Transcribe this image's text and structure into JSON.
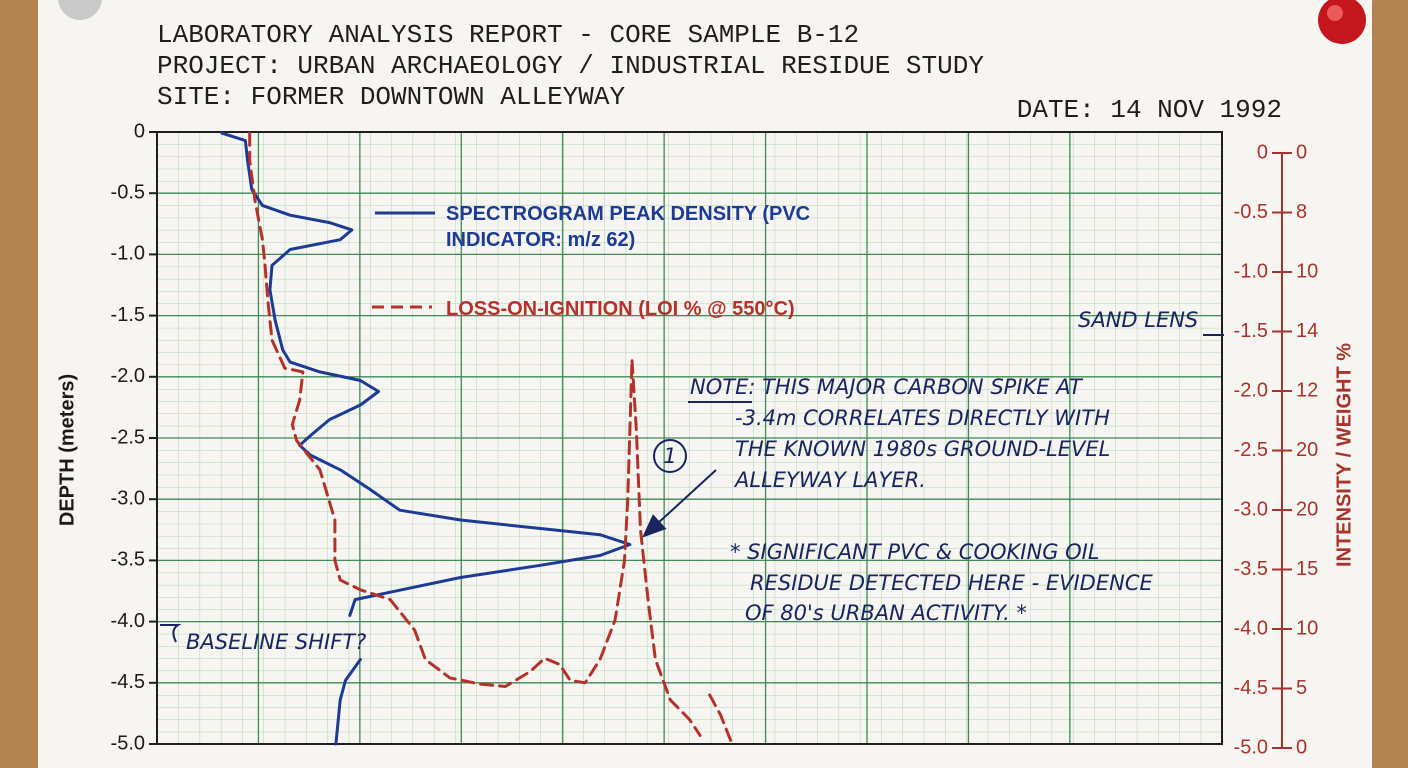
{
  "header": {
    "lines": [
      "LABORATORY ANALYSIS REPORT - CORE SAMPLE B-12",
      "PROJECT: URBAN ARCHAEOLOGY / INDUSTRIAL RESIDUE STUDY",
      "SITE: FORMER DOWNTOWN ALLEYWAY"
    ],
    "date": "DATE: 14 NOV 1992"
  },
  "chart_data": {
    "type": "line",
    "y_label": "DEPTH (meters)",
    "y2_label": "INTENSITY / WEIGHT %",
    "xlim": [
      0,
      100
    ],
    "ylim": [
      0,
      -5
    ],
    "yticks": [
      0,
      -0.5,
      {
        "value": -1,
        "label": "-1.0"
      },
      -1.5,
      {
        "value": -2,
        "label": "-2.0"
      },
      -2.5,
      {
        "value": -3,
        "label": "-3.0"
      },
      -3.5,
      {
        "value": -4,
        "label": "-4.0"
      },
      -4.5,
      {
        "value": -5,
        "label": "-5.0"
      }
    ],
    "y2lim": [
      0,
      -5
    ],
    "y2ticks": [
      0,
      -0.5,
      {
        "value": -1,
        "label": "-1.0"
      },
      -1.5,
      {
        "value": -2,
        "label": "-2.0"
      },
      -2.5,
      {
        "value": -3,
        "label": "-3.0"
      },
      -3.5,
      {
        "value": -4,
        "label": "-4.0"
      },
      -4.5,
      {
        "value": -5,
        "label": "-5.0"
      }
    ],
    "y2_intensity_labels": [
      0,
      8,
      10,
      14,
      12,
      20,
      20,
      15,
      10,
      5,
      0
    ],
    "grid": true,
    "series": [
      {
        "name": "SPECTROGRAM PEAK DENSITY (PVC INDICATOR: m/z 62)",
        "color": "#1d3a94",
        "style": "solid",
        "x": [
          6.1,
          8.3,
          8.5,
          8.9,
          9.9,
          12.5,
          16.2,
          18.3,
          17.2,
          12.5,
          10.8,
          10.6,
          11.1,
          11.8,
          12.5,
          15.3,
          19.1,
          20.8,
          19.1,
          16.2,
          14.4,
          13.4,
          14.4,
          17.2,
          20.0,
          22.8,
          28.5,
          35.0,
          41.6,
          44.4,
          41.6,
          36.0,
          28.5,
          21.9,
          18.6,
          18.1,
          null,
          19.1,
          17.7,
          17.2,
          16.8
        ],
        "y": [
          -0.01,
          -0.07,
          -0.23,
          -0.47,
          -0.6,
          -0.68,
          -0.74,
          -0.8,
          -0.88,
          -0.96,
          -1.09,
          -1.29,
          -1.54,
          -1.78,
          -1.88,
          -1.96,
          -2.03,
          -2.12,
          -2.23,
          -2.35,
          -2.48,
          -2.56,
          -2.64,
          -2.76,
          -2.92,
          -3.09,
          -3.17,
          -3.23,
          -3.29,
          -3.37,
          -3.46,
          -3.54,
          -3.64,
          -3.76,
          -3.82,
          -3.95,
          null,
          -4.31,
          -4.48,
          -4.64,
          -5.0
        ]
      },
      {
        "name": "LOSS-ON-IGNITION (LOI % @ 550°C)",
        "color": "#b5322a",
        "style": "dashed",
        "x": [
          8.7,
          8.7,
          9.2,
          9.9,
          10.1,
          10.4,
          10.8,
          12.0,
          13.7,
          13.4,
          12.7,
          13.1,
          15.3,
          16.7,
          16.7,
          17.2,
          19.1,
          21.9,
          24.2,
          25.2,
          27.5,
          30.3,
          32.7,
          35.0,
          36.4,
          37.8,
          38.8,
          40.2,
          41.6,
          43.0,
          43.9,
          44.2,
          44.4,
          44.6,
          45.0,
          45.4,
          46.1,
          46.8,
          48.2,
          50.0,
          51.0,
          null,
          51.9,
          52.9,
          54.0
        ],
        "y": [
          -0.01,
          -0.23,
          -0.56,
          -0.88,
          -1.05,
          -1.37,
          -1.7,
          -1.93,
          -1.96,
          -2.19,
          -2.39,
          -2.52,
          -2.76,
          -3.17,
          -3.5,
          -3.66,
          -3.74,
          -3.82,
          -4.07,
          -4.31,
          -4.46,
          -4.51,
          -4.53,
          -4.41,
          -4.3,
          -4.35,
          -4.48,
          -4.5,
          -4.31,
          -3.99,
          -3.5,
          -3.01,
          -2.43,
          -1.86,
          -2.43,
          -3.25,
          -3.82,
          -4.31,
          -4.64,
          -4.8,
          -4.93,
          null,
          -4.6,
          -4.76,
          -5.0
        ]
      }
    ],
    "annotations": {
      "note": [
        "NOTE: THIS MAJOR CARBON SPIKE AT",
        "-3.4m CORRELATES DIRECTLY WITH",
        "THE KNOWN 1980s GROUND-LEVEL",
        "ALLEYWAY LAYER."
      ],
      "callout": "1",
      "residue": [
        "* SIGNIFICANT PVC & COOKING OIL",
        "RESIDUE DETECTED HERE - EVIDENCE",
        "OF 80's URBAN ACTIVITY. *"
      ],
      "baseline": "BASELINE SHIFT?",
      "sand": "SAND LENS"
    }
  }
}
